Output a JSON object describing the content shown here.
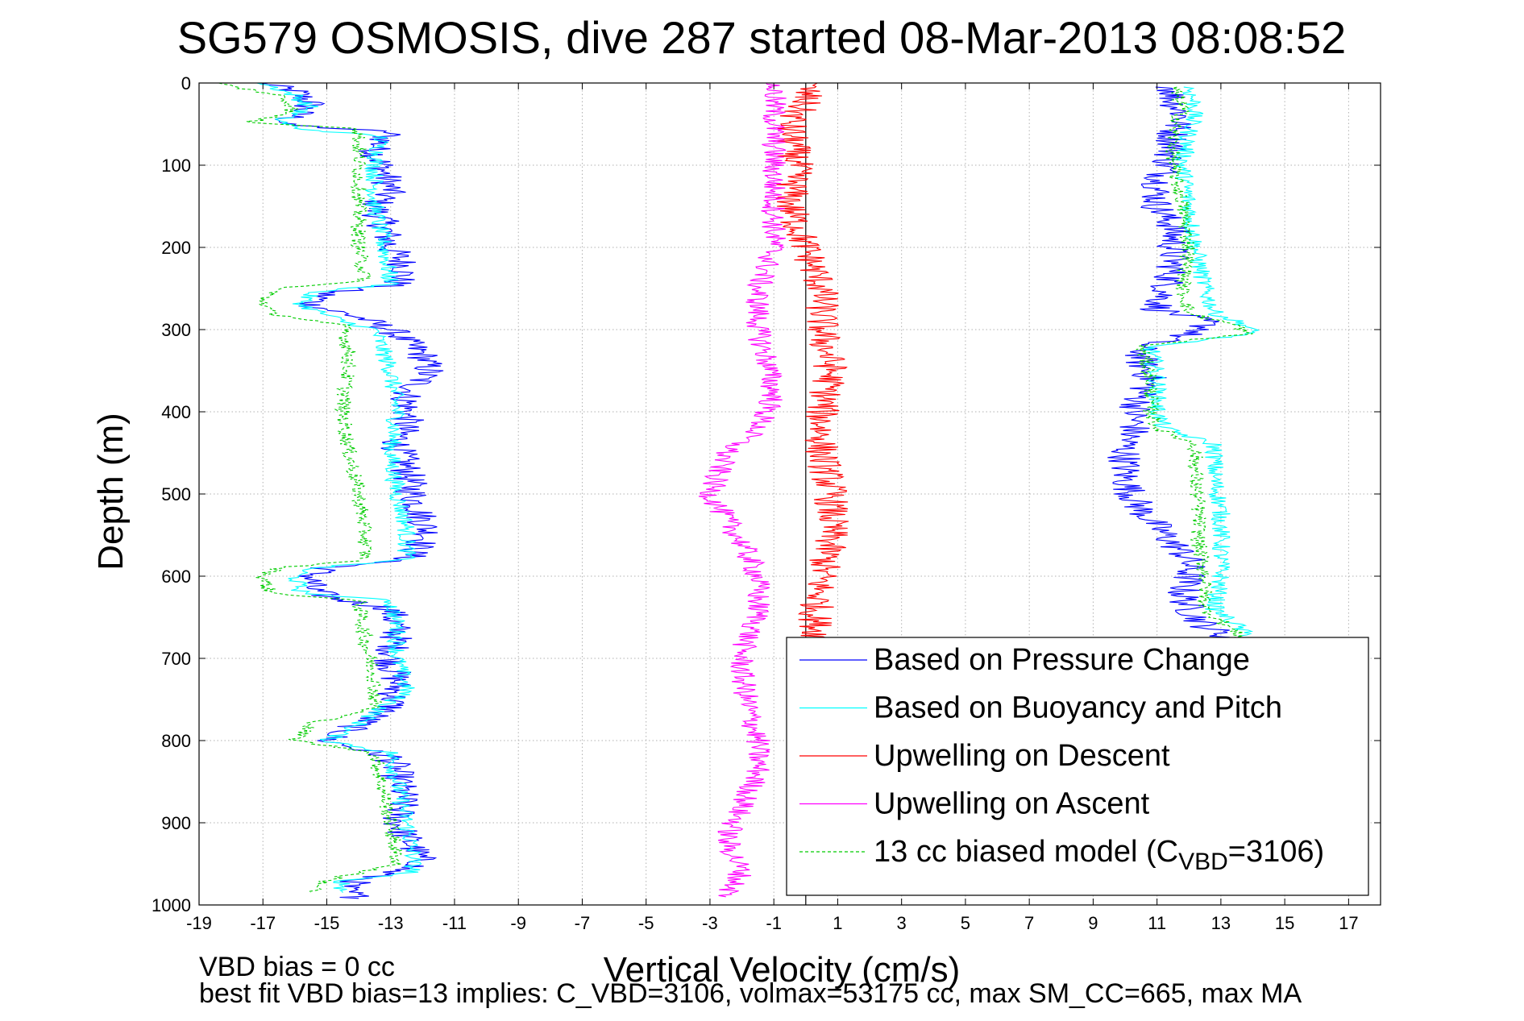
{
  "chart_data": {
    "type": "line",
    "title": "SG579 OSMOSIS, dive 287 started 08-Mar-2013 08:08:52",
    "xlabel": "Vertical Velocity (cm/s)",
    "ylabel": "Depth (m)",
    "xlim": [
      -19,
      18
    ],
    "ylim": [
      0,
      1000
    ],
    "y_reversed": true,
    "grid": true,
    "legend_position": "bottom-right",
    "x_ticks": [
      -19,
      -17,
      -15,
      -13,
      -11,
      -9,
      -7,
      -5,
      -3,
      -1,
      1,
      3,
      5,
      7,
      9,
      11,
      13,
      15,
      17
    ],
    "y_ticks": [
      0,
      100,
      200,
      300,
      400,
      500,
      600,
      700,
      800,
      900,
      1000
    ],
    "vertical_reference_line_x": 0,
    "series": [
      {
        "name": "Based on Pressure Change",
        "color": "#0000ff",
        "style": "solid",
        "noise": 0.55,
        "profiles": [
          {
            "depth": [
              0,
              10,
              25,
              40,
              50,
              60,
              80,
              100,
              130,
              150,
              175,
              200,
              225,
              245,
              255,
              270,
              285,
              300,
              330,
              350,
              380,
              410,
              440,
              470,
              500,
              530,
              550,
              580,
              590,
              600,
              615,
              625,
              640,
              670,
              700,
              730,
              760,
              780,
              800,
              820,
              840,
              870,
              900,
              930,
              950,
              970,
              980,
              992
            ],
            "x": [
              -17,
              -16,
              -15.5,
              -16,
              -16.5,
              -13,
              -13.5,
              -13.3,
              -13,
              -13.5,
              -13.2,
              -13,
              -12.5,
              -12.8,
              -15,
              -15.5,
              -14,
              -13,
              -12,
              -11.8,
              -12.5,
              -12.5,
              -12.8,
              -12.5,
              -12.3,
              -12,
              -11.8,
              -12.5,
              -15,
              -15.5,
              -15.5,
              -15,
              -13,
              -12.8,
              -13,
              -12.8,
              -13,
              -14,
              -15,
              -13,
              -12.8,
              -12.6,
              -12.8,
              -12.3,
              -12,
              -14,
              -14.5,
              -14
            ]
          },
          {
            "depth": [
              5,
              20,
              40,
              60,
              80,
              100,
              130,
              150,
              175,
              200,
              225,
              250,
              275,
              290,
              300,
              320,
              340,
              360,
              380,
              400,
              420,
              440,
              460,
              480,
              500,
              520,
              540,
              560,
              580,
              600,
              620,
              640,
              660,
              680
            ],
            "x": [
              11.5,
              11.5,
              11.8,
              11.5,
              11.5,
              11.3,
              11,
              11,
              11.5,
              11.5,
              11.5,
              11.3,
              11,
              12.5,
              12.5,
              10.5,
              10.5,
              10.8,
              10.5,
              10.3,
              10.3,
              10,
              10,
              10,
              10.2,
              10.5,
              11,
              11.5,
              12,
              12,
              11.8,
              12,
              12.5,
              13.5
            ]
          }
        ]
      },
      {
        "name": "Based on Buoyancy and Pitch",
        "color": "#00ffff",
        "style": "solid",
        "noise": 0.3,
        "profiles": [
          {
            "depth": [
              0,
              15,
              30,
              45,
              55,
              65,
              100,
              150,
              200,
              245,
              255,
              270,
              290,
              300,
              350,
              400,
              450,
              500,
              540,
              580,
              590,
              600,
              620,
              630,
              660,
              700,
              740,
              780,
              800,
              815,
              850,
              900,
              940,
              960,
              970,
              985
            ],
            "x": [
              -17,
              -16,
              -15.5,
              -16.5,
              -16,
              -13.3,
              -13.5,
              -13.5,
              -13.2,
              -13,
              -15.5,
              -15.8,
              -14.5,
              -13.5,
              -13,
              -12.8,
              -13,
              -12.8,
              -12.5,
              -12.5,
              -15.5,
              -16,
              -15.8,
              -13,
              -12.8,
              -12.8,
              -12.5,
              -14,
              -15,
              -13,
              -12.8,
              -12.5,
              -12.3,
              -12.3,
              -14.5,
              -14.5
            ]
          },
          {
            "depth": [
              5,
              30,
              60,
              100,
              150,
              200,
              250,
              280,
              295,
              305,
              320,
              360,
              400,
              420,
              440,
              480,
              520,
              560,
              600,
              640,
              660,
              680
            ],
            "x": [
              12,
              12.2,
              12,
              11.8,
              12,
              12.2,
              12.5,
              12.8,
              13.8,
              14,
              10.8,
              11,
              11,
              11.2,
              12.8,
              12.8,
              13,
              13,
              13,
              12.8,
              13.5,
              14
            ]
          }
        ]
      },
      {
        "name": "Upwelling on Descent",
        "color": "#ff0000",
        "style": "solid",
        "noise": 0.55,
        "profiles": [
          {
            "depth": [
              0,
              20,
              50,
              100,
              150,
              200,
              250,
              300,
              350,
              400,
              450,
              500,
              550,
              600,
              650,
              700,
              750,
              800,
              850,
              900,
              950,
              985
            ],
            "x": [
              0,
              0,
              -0.5,
              -0.3,
              -0.5,
              0,
              0.5,
              0.5,
              0.8,
              0.5,
              0.5,
              0.8,
              0.8,
              0.5,
              0.3,
              0.5,
              0.3,
              0.3,
              0.3,
              0.3,
              0.5,
              0.5
            ]
          }
        ]
      },
      {
        "name": "Upwelling on Ascent",
        "color": "#ff00ff",
        "style": "solid",
        "noise": 0.4,
        "profiles": [
          {
            "depth": [
              0,
              30,
              100,
              150,
              200,
              250,
              300,
              340,
              380,
              420,
              450,
              480,
              500,
              530,
              560,
              600,
              650,
              690,
              720,
              760,
              800,
              840,
              880,
              920,
              960,
              990
            ],
            "x": [
              -1,
              -1,
              -1,
              -1,
              -1,
              -1.5,
              -1.5,
              -1.2,
              -1,
              -1.5,
              -2.5,
              -2.8,
              -3,
              -2.5,
              -2,
              -1.5,
              -1.5,
              -2,
              -2,
              -1.8,
              -1.5,
              -1.5,
              -2,
              -2.5,
              -2,
              -2.5
            ]
          }
        ]
      },
      {
        "name": "13 cc biased model (C_VBD=3106)",
        "color": "#00cc00",
        "style": "dashed",
        "noise": 0.25,
        "profiles": [
          {
            "depth": [
              0,
              15,
              30,
              40,
              48,
              55,
              65,
              100,
              150,
              200,
              240,
              250,
              262,
              280,
              295,
              330,
              400,
              450,
              500,
              550,
              580,
              590,
              600,
              620,
              630,
              680,
              720,
              760,
              780,
              800,
              815,
              850,
              900,
              950,
              970,
              985
            ],
            "x": [
              -18.5,
              -16.5,
              -16,
              -16.5,
              -17.5,
              -14,
              -14,
              -14,
              -14,
              -14,
              -13.8,
              -16.5,
              -17,
              -16.8,
              -14.5,
              -14.3,
              -14.5,
              -14.3,
              -14,
              -13.8,
              -13.8,
              -16.5,
              -17,
              -16.8,
              -14,
              -13.8,
              -13.5,
              -13.5,
              -15.5,
              -16,
              -13.5,
              -13.3,
              -13,
              -12.8,
              -15,
              -15.5
            ]
          },
          {
            "depth": [
              5,
              30,
              60,
              100,
              150,
              200,
              250,
              280,
              295,
              305,
              320,
              360,
              400,
              420,
              440,
              480,
              520,
              560,
              600,
              640,
              660,
              680
            ],
            "x": [
              11.5,
              11.8,
              11.5,
              11.5,
              11.8,
              12,
              11.8,
              12,
              13.5,
              13.8,
              10.5,
              10.8,
              10.8,
              11,
              12.2,
              12.2,
              12.3,
              12.3,
              12.5,
              12.5,
              13.2,
              13.8
            ]
          }
        ]
      }
    ],
    "legend": [
      {
        "label": "Based on Pressure Change",
        "color": "#0000ff",
        "style": "solid"
      },
      {
        "label": "Based on Buoyancy and Pitch",
        "color": "#00ffff",
        "style": "solid"
      },
      {
        "label": "Upwelling on Descent",
        "color": "#ff0000",
        "style": "solid"
      },
      {
        "label": "Upwelling on Ascent",
        "color": "#ff00ff",
        "style": "solid"
      },
      {
        "label": "13 cc biased model (C",
        "sub": "VBD",
        "tail": "=3106)",
        "color": "#00cc00",
        "style": "dashed"
      }
    ],
    "annotations": [
      "VBD bias = 0 cc",
      "best fit VBD bias=13 implies: C_VBD=3106, volmax=53175 cc, max SM_CC=665, max MA"
    ]
  }
}
